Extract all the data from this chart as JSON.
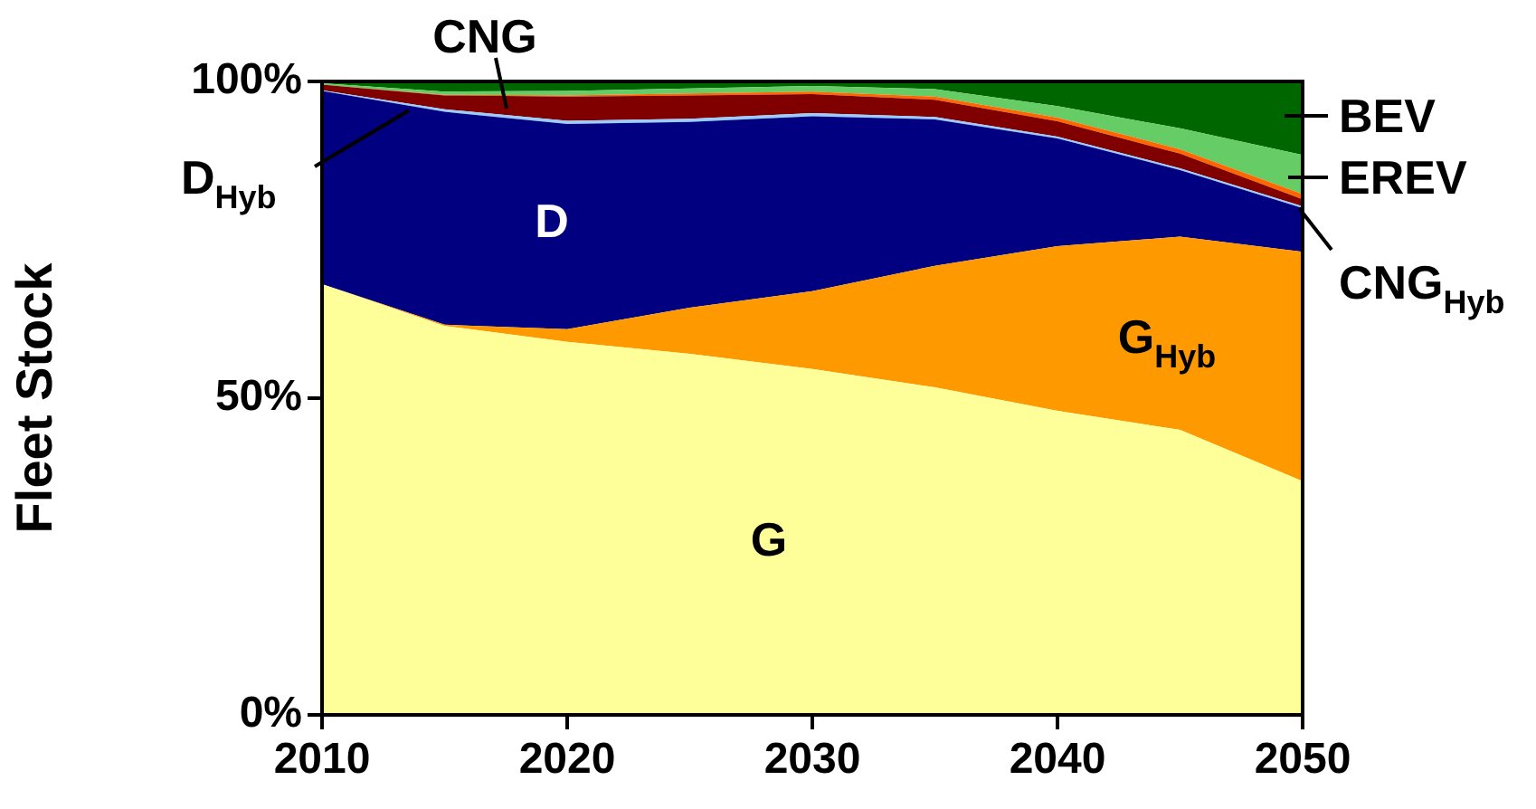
{
  "chart_data": {
    "type": "area",
    "stacked": true,
    "ylabel": "Fleet Stock",
    "x": [
      2010,
      2015,
      2020,
      2025,
      2030,
      2035,
      2040,
      2045,
      2050
    ],
    "xlim": [
      2010,
      2050
    ],
    "xticks": [
      2010,
      2020,
      2030,
      2040,
      2050
    ],
    "ylim": [
      0,
      100
    ],
    "yticks": [
      {
        "value": 0,
        "label": "0%"
      },
      {
        "value": 50,
        "label": "50%"
      },
      {
        "value": 100,
        "label": "100%"
      }
    ],
    "grid": false,
    "legend": false,
    "series": [
      {
        "name": "G",
        "color": "#ffff99",
        "values": [
          68,
          61.4,
          58.9,
          57,
          54.6,
          51.7,
          48,
          45,
          36.9
        ]
      },
      {
        "name": "G$_{Hyb}$",
        "color": "#ff9900",
        "values": [
          0,
          0.2,
          2,
          7.3,
          12.3,
          19.2,
          26,
          30.5,
          36.2
        ]
      },
      {
        "name": "D",
        "color": "#000080",
        "values": [
          30.5,
          33.6,
          32.4,
          29.3,
          27.6,
          23.1,
          17,
          10.5,
          6.9
        ]
      },
      {
        "name": "D$_{Hyb}$",
        "color": "#99ccff",
        "values": [
          0.1,
          0.4,
          0.5,
          0.5,
          0.5,
          0.4,
          0.3,
          0.3,
          0.3
        ]
      },
      {
        "name": "CNG",
        "color": "#800000",
        "values": [
          0.9,
          2.2,
          3.8,
          3.7,
          3,
          2.7,
          2.4,
          2.3,
          1.1
        ]
      },
      {
        "name": "CNG$_{Hyb}$",
        "color": "#ff6600",
        "values": [
          0,
          0.1,
          0.2,
          0.3,
          0.4,
          0.5,
          0.6,
          0.7,
          0.8
        ]
      },
      {
        "name": "EREV",
        "color": "#66cc66",
        "values": [
          0.2,
          0.5,
          0.7,
          0.8,
          0.9,
          1.2,
          1.8,
          3.3,
          6.2
        ]
      },
      {
        "name": "BEV",
        "color": "#006600",
        "values": [
          0.3,
          1.6,
          1.5,
          1.1,
          0.7,
          1.2,
          3.9,
          7.4,
          11.6
        ]
      }
    ]
  }
}
